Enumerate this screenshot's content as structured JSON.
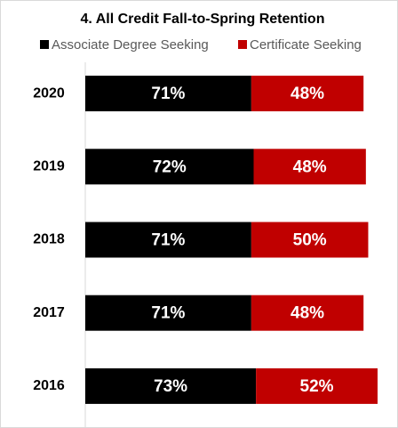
{
  "chart_data": {
    "type": "stacked-bar-horizontal",
    "title": "4.  All Credit Fall-to-Spring Retention",
    "categories": [
      "2020",
      "2019",
      "2018",
      "2017",
      "2016"
    ],
    "series": [
      {
        "name": "Associate Degree Seeking",
        "color": "#000000",
        "values": [
          71,
          72,
          71,
          71,
          73
        ],
        "value_labels": [
          "71%",
          "72%",
          "71%",
          "71%",
          "73%"
        ]
      },
      {
        "name": "Certificate Seeking",
        "color": "#c00000",
        "values": [
          48,
          48,
          50,
          48,
          52
        ],
        "value_labels": [
          "48%",
          "48%",
          "50%",
          "48%",
          "52%"
        ]
      }
    ]
  }
}
